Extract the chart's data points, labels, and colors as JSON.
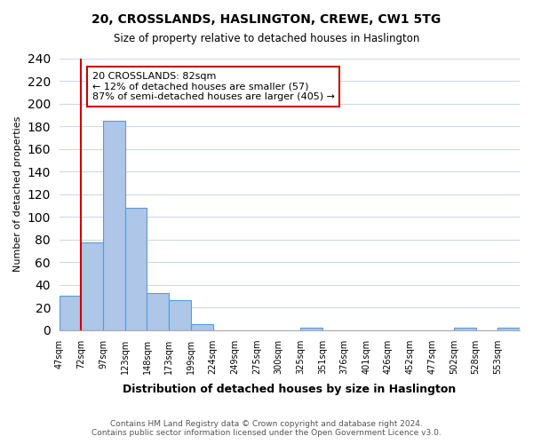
{
  "title": "20, CROSSLANDS, HASLINGTON, CREWE, CW1 5TG",
  "subtitle": "Size of property relative to detached houses in Haslington",
  "xlabel": "Distribution of detached houses by size in Haslington",
  "ylabel": "Number of detached properties",
  "bin_labels": [
    "47sqm",
    "72sqm",
    "97sqm",
    "123sqm",
    "148sqm",
    "173sqm",
    "199sqm",
    "224sqm",
    "249sqm",
    "275sqm",
    "300sqm",
    "325sqm",
    "351sqm",
    "376sqm",
    "401sqm",
    "426sqm",
    "452sqm",
    "477sqm",
    "502sqm",
    "528sqm",
    "553sqm"
  ],
  "bar_heights": [
    30,
    77,
    185,
    108,
    33,
    26,
    5,
    0,
    0,
    0,
    0,
    2,
    0,
    0,
    0,
    0,
    0,
    0,
    2,
    0,
    2
  ],
  "bar_color": "#aec6e8",
  "bar_edge_color": "#5b9bd5",
  "ylim": [
    0,
    240
  ],
  "yticks": [
    0,
    20,
    40,
    60,
    80,
    100,
    120,
    140,
    160,
    180,
    200,
    220,
    240
  ],
  "property_line_x": 1,
  "property_line_color": "#cc0000",
  "annotation_title": "20 CROSSLANDS: 82sqm",
  "annotation_line1": "← 12% of detached houses are smaller (57)",
  "annotation_line2": "87% of semi-detached houses are larger (405) →",
  "annotation_box_color": "#ffffff",
  "annotation_box_edge": "#cc0000",
  "footer_line1": "Contains HM Land Registry data © Crown copyright and database right 2024.",
  "footer_line2": "Contains public sector information licensed under the Open Government Licence v3.0.",
  "background_color": "#ffffff",
  "grid_color": "#d0d8e8"
}
